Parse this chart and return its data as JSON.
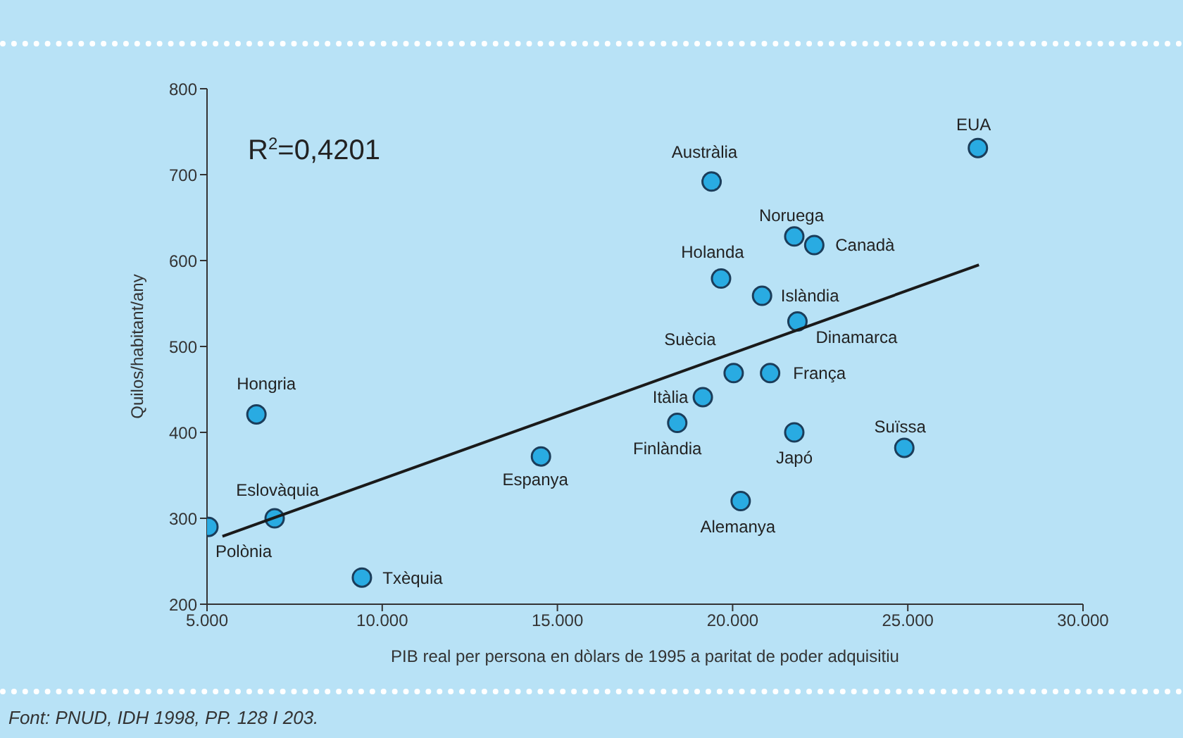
{
  "chart_data": {
    "type": "scatter",
    "xlabel": "PIB real per persona en dòlars de 1995 a paritat de poder adquisitiu",
    "ylabel": "Quilos/habitant/any",
    "xlim": [
      5000,
      30000
    ],
    "xticks": [
      {
        "value": 5000,
        "label": "5.000"
      },
      {
        "value": 10000,
        "label": "10.000"
      },
      {
        "value": 15000,
        "label": "15.000"
      },
      {
        "value": 20000,
        "label": "20.000"
      },
      {
        "value": 25000,
        "label": "25.000"
      },
      {
        "value": 30000,
        "label": "30.000"
      }
    ],
    "ylim": [
      200,
      800
    ],
    "yticks": [
      200,
      300,
      400,
      500,
      600,
      700,
      800
    ],
    "grid": false,
    "series": [
      {
        "marker": "circle",
        "color": "#29abe2",
        "x": [
          5040,
          6930,
          6410,
          9420,
          14530,
          18420,
          19150,
          20030,
          21070,
          20230,
          21760,
          24900,
          21850,
          20840,
          19670,
          21760,
          22330,
          19400,
          27000
        ],
        "values": [
          290,
          300,
          421,
          231,
          372,
          411,
          441,
          469,
          469,
          320,
          400,
          382,
          529,
          559,
          579,
          628,
          618,
          692,
          731
        ]
      },
      {
        "type": "line",
        "color": "#1a1a1a",
        "x": [
          5440,
          27030
        ],
        "values": [
          279,
          595
        ]
      }
    ],
    "annotations": [
      "R$^{2}$=0,4201",
      {
        "text": "Polònia",
        "x": 5040,
        "y": 290
      },
      {
        "text": "Eslovàquia",
        "x": 6930,
        "y": 300
      },
      {
        "text": "Hongria",
        "x": 6410,
        "y": 421
      },
      {
        "text": "Txèquia",
        "x": 9420,
        "y": 231
      },
      {
        "text": "Espanya",
        "x": 14530,
        "y": 372
      },
      {
        "text": "Finlàndia",
        "x": 18420,
        "y": 411
      },
      {
        "text": "Itàlia",
        "x": 19150,
        "y": 441
      },
      {
        "text": "Suècia",
        "x": 20030,
        "y": 469
      },
      {
        "text": "França",
        "x": 21070,
        "y": 469
      },
      {
        "text": "Alemanya",
        "x": 20230,
        "y": 320
      },
      {
        "text": "Japó",
        "x": 21760,
        "y": 400
      },
      {
        "text": "Suïssa",
        "x": 24900,
        "y": 382
      },
      {
        "text": "Dinamarca",
        "x": 21850,
        "y": 529
      },
      {
        "text": "Islàndia",
        "x": 20840,
        "y": 559
      },
      {
        "text": "Holanda",
        "x": 19670,
        "y": 579
      },
      {
        "text": "Noruega",
        "x": 21760,
        "y": 628
      },
      {
        "text": "Canadà",
        "x": 22330,
        "y": 618
      },
      {
        "text": "Austràlia",
        "x": 19400,
        "y": 692
      },
      {
        "text": "EUA",
        "x": 27000,
        "y": 731
      },
      "Font: PNUD, IDH 1998, PP. 128 I 203."
    ]
  }
}
